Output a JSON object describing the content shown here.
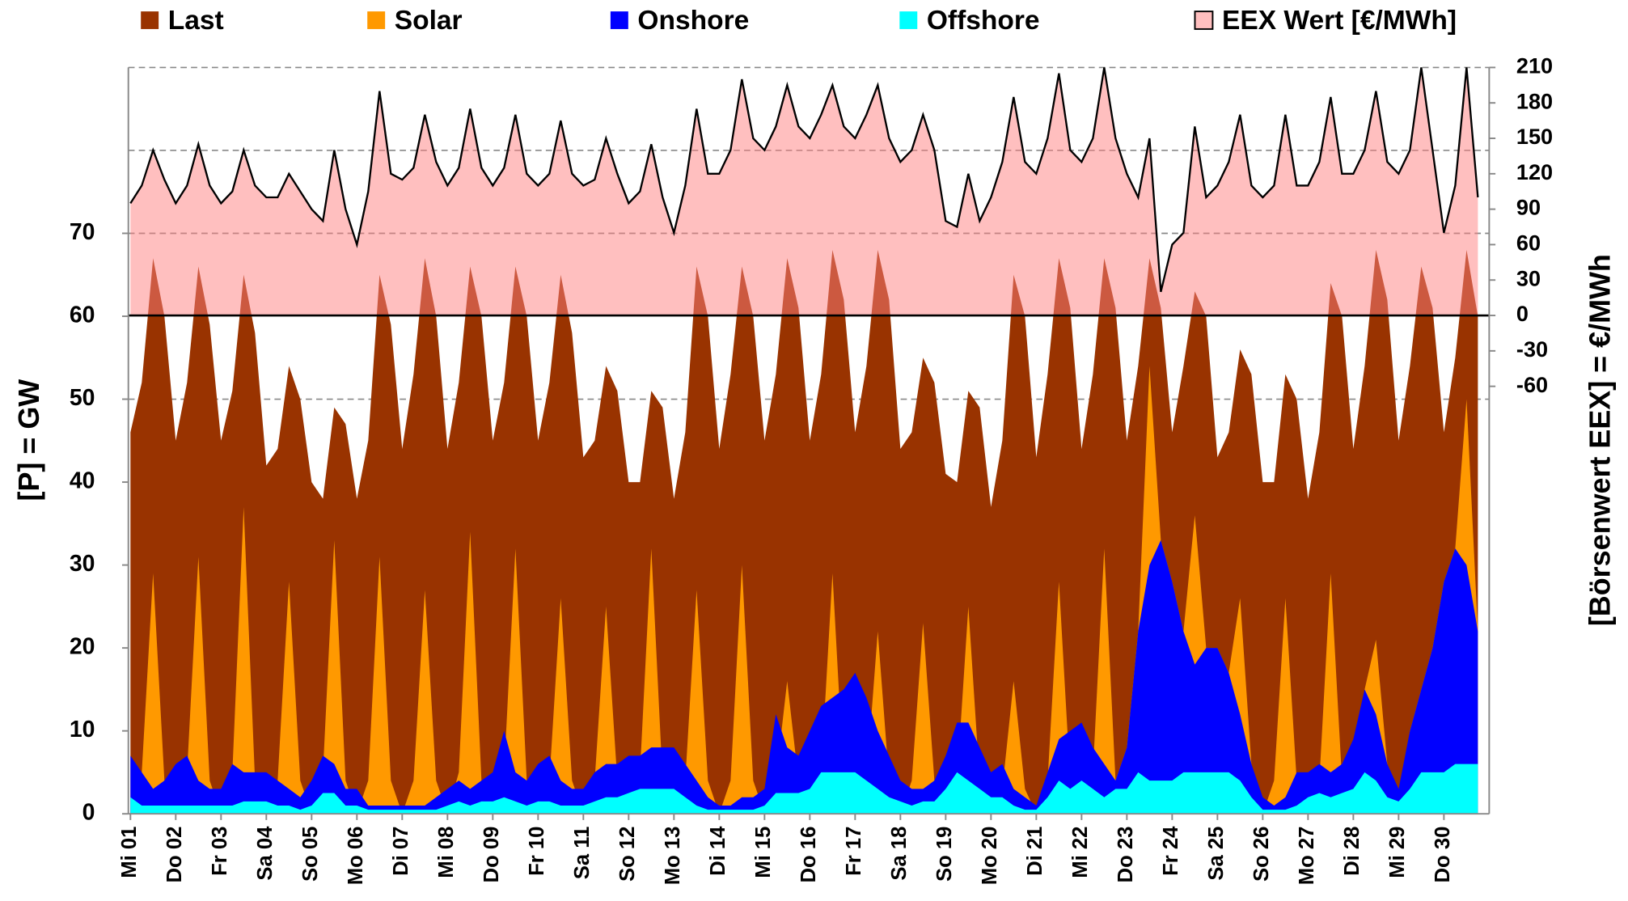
{
  "chart_data": {
    "type": "area",
    "x": [
      0,
      0.25,
      0.5,
      0.75,
      1,
      1.25,
      1.5,
      1.75,
      2,
      2.25,
      2.5,
      2.75,
      3,
      3.25,
      3.5,
      3.75,
      4,
      4.25,
      4.5,
      4.75,
      5,
      5.25,
      5.5,
      5.75,
      6,
      6.25,
      6.5,
      6.75,
      7,
      7.25,
      7.5,
      7.75,
      8,
      8.25,
      8.5,
      8.75,
      9,
      9.25,
      9.5,
      9.75,
      10,
      10.25,
      10.5,
      10.75,
      11,
      11.25,
      11.5,
      11.75,
      12,
      12.25,
      12.5,
      12.75,
      13,
      13.25,
      13.5,
      13.75,
      14,
      14.25,
      14.5,
      14.75,
      15,
      15.25,
      15.5,
      15.75,
      16,
      16.25,
      16.5,
      16.75,
      17,
      17.25,
      17.5,
      17.75,
      18,
      18.25,
      18.5,
      18.75,
      19,
      19.25,
      19.5,
      19.75,
      20,
      20.25,
      20.5,
      20.75,
      21,
      21.25,
      21.5,
      21.75,
      22,
      22.25,
      22.5,
      22.75,
      23,
      23.25,
      23.5,
      23.75,
      24,
      24.25,
      24.5,
      24.75,
      25,
      25.25,
      25.5,
      25.75,
      26,
      26.25,
      26.5,
      26.75,
      27,
      27.25,
      27.5,
      27.75,
      28,
      28.25,
      28.5,
      28.75,
      29,
      29.25,
      29.5,
      29.75
    ],
    "xlim": [
      0,
      30
    ],
    "xticks": [
      {
        "value": 0,
        "label": "Mi 01"
      },
      {
        "value": 1,
        "label": "Do 02"
      },
      {
        "value": 2,
        "label": "Fr 03"
      },
      {
        "value": 3,
        "label": "Sa 04"
      },
      {
        "value": 4,
        "label": "So 05"
      },
      {
        "value": 5,
        "label": "Mo 06"
      },
      {
        "value": 6,
        "label": "Di 07"
      },
      {
        "value": 7,
        "label": "Mi 08"
      },
      {
        "value": 8,
        "label": "Do 09"
      },
      {
        "value": 9,
        "label": "Fr 10"
      },
      {
        "value": 10,
        "label": "Sa 11"
      },
      {
        "value": 11,
        "label": "So 12"
      },
      {
        "value": 12,
        "label": "Mo 13"
      },
      {
        "value": 13,
        "label": "Di 14"
      },
      {
        "value": 14,
        "label": "Mi 15"
      },
      {
        "value": 15,
        "label": "Do 16"
      },
      {
        "value": 16,
        "label": "Fr 17"
      },
      {
        "value": 17,
        "label": "Sa 18"
      },
      {
        "value": 18,
        "label": "So 19"
      },
      {
        "value": 19,
        "label": "Mo 20"
      },
      {
        "value": 20,
        "label": "Di 21"
      },
      {
        "value": 21,
        "label": "Mi 22"
      },
      {
        "value": 22,
        "label": "Do 23"
      },
      {
        "value": 23,
        "label": "Fr 24"
      },
      {
        "value": 24,
        "label": "Sa 25"
      },
      {
        "value": 25,
        "label": "So 26"
      },
      {
        "value": 26,
        "label": "Mo 27"
      },
      {
        "value": 27,
        "label": "Di 28"
      },
      {
        "value": 28,
        "label": "Mi 29"
      },
      {
        "value": 29,
        "label": "Do 30"
      }
    ],
    "ylabel": "[P]  =  GW",
    "y2label": "[Börsenwert  EEX]  =  €/MWh",
    "ylim": [
      0,
      90
    ],
    "yticks": [
      0,
      10,
      20,
      30,
      40,
      50,
      60,
      70
    ],
    "y2lim": [
      -422,
      210
    ],
    "y2ticks": [
      -60,
      -30,
      0,
      30,
      60,
      90,
      120,
      150,
      180,
      210
    ],
    "y2_negative_tick_color": "#ff0000",
    "grid_lines": [
      50,
      70,
      80,
      90
    ],
    "y2_zero_line": true,
    "series": [
      {
        "name": "Last",
        "color": "#993300",
        "values": [
          46,
          52,
          67,
          60,
          45,
          52,
          66,
          59,
          45,
          51,
          65,
          58,
          42,
          44,
          54,
          50,
          40,
          38,
          49,
          47,
          38,
          45,
          65,
          59,
          44,
          53,
          67,
          60,
          44,
          52,
          66,
          60,
          45,
          52,
          66,
          60,
          45,
          52,
          65,
          58,
          43,
          45,
          54,
          51,
          40,
          40,
          51,
          49,
          38,
          46,
          66,
          60,
          44,
          53,
          66,
          60,
          45,
          53,
          67,
          61,
          45,
          53,
          68,
          62,
          46,
          54,
          68,
          62,
          44,
          46,
          55,
          52,
          41,
          40,
          51,
          49,
          37,
          45,
          65,
          60,
          43,
          53,
          67,
          61,
          44,
          53,
          67,
          61,
          45,
          54,
          67,
          61,
          46,
          54,
          63,
          60,
          43,
          46,
          56,
          53,
          40,
          40,
          53,
          50,
          38,
          46,
          64,
          60,
          44,
          54,
          68,
          62,
          45,
          54,
          66,
          61,
          46,
          55,
          68,
          60
        ]
      },
      {
        "name": "Solar",
        "color": "#ff9900",
        "values": [
          0,
          5,
          29,
          4,
          0,
          5,
          31,
          4,
          0,
          5,
          37,
          4,
          0,
          4,
          28,
          4,
          0,
          5,
          33,
          4,
          0,
          4,
          31,
          4,
          0,
          4,
          27,
          4,
          0,
          5,
          34,
          4,
          0,
          5,
          32,
          4,
          0,
          4,
          26,
          4,
          0,
          4,
          25,
          4,
          0,
          5,
          32,
          4,
          0,
          4,
          27,
          4,
          0,
          4,
          30,
          4,
          0,
          4,
          16,
          4,
          0,
          5,
          29,
          4,
          0,
          4,
          22,
          4,
          0,
          4,
          23,
          4,
          0,
          4,
          25,
          4,
          0,
          3,
          16,
          3,
          0,
          4,
          28,
          4,
          0,
          5,
          32,
          4,
          8,
          22,
          54,
          33,
          28,
          22,
          36,
          20,
          20,
          17,
          26,
          6,
          0,
          4,
          26,
          4,
          0,
          4,
          29,
          4,
          0,
          15,
          21,
          6,
          0,
          10,
          15,
          20,
          28,
          32,
          50,
          22
        ]
      },
      {
        "name": "Onshore",
        "color": "#0000ff",
        "values": [
          7,
          5,
          3,
          4,
          6,
          7,
          4,
          3,
          3,
          6,
          5,
          5,
          5,
          4,
          3,
          2,
          4,
          7,
          6,
          3,
          3,
          1,
          1,
          1,
          1,
          1,
          1,
          2,
          3,
          4,
          3,
          4,
          5,
          10,
          5,
          4,
          6,
          7,
          4,
          3,
          3,
          5,
          6,
          6,
          7,
          7,
          8,
          8,
          8,
          6,
          4,
          2,
          1,
          1,
          2,
          2,
          3,
          12,
          8,
          7,
          10,
          13,
          14,
          15,
          17,
          14,
          10,
          7,
          4,
          3,
          3,
          4,
          7,
          11,
          11,
          8,
          5,
          6,
          3,
          2,
          1,
          5,
          9,
          10,
          11,
          8,
          6,
          4,
          8,
          22,
          30,
          33,
          28,
          22,
          18,
          20,
          20,
          17,
          12,
          6,
          2,
          1,
          2,
          5,
          5,
          6,
          5,
          6,
          9,
          15,
          12,
          6,
          3,
          10,
          15,
          20,
          28,
          32,
          30,
          22
        ]
      },
      {
        "name": "Offshore",
        "color": "#00ffff",
        "values": [
          2,
          1,
          1,
          1,
          1,
          1,
          1,
          1,
          1,
          1,
          1.5,
          1.5,
          1.5,
          1,
          1,
          0.5,
          1,
          2.5,
          2.5,
          1,
          1,
          0.5,
          0.5,
          0.5,
          0.5,
          0.5,
          0.5,
          0.5,
          1,
          1.5,
          1,
          1.5,
          1.5,
          2,
          1.5,
          1,
          1.5,
          1.5,
          1,
          1,
          1,
          1.5,
          2,
          2,
          2.5,
          3,
          3,
          3,
          3,
          2,
          1,
          0.5,
          0.5,
          0.5,
          0.5,
          0.5,
          1,
          2.5,
          2.5,
          2.5,
          3,
          5,
          5,
          5,
          5,
          4,
          3,
          2,
          1.5,
          1,
          1.5,
          1.5,
          3,
          5,
          4,
          3,
          2,
          2,
          1,
          0.5,
          0.5,
          2,
          4,
          3,
          4,
          3,
          2,
          3,
          3,
          5,
          4,
          4,
          4,
          5,
          5,
          5,
          5,
          5,
          4,
          2,
          0.5,
          0.5,
          0.5,
          1,
          2,
          2.5,
          2,
          2.5,
          3,
          5,
          4,
          2,
          1.5,
          3,
          5,
          5,
          5,
          6,
          6,
          6
        ]
      },
      {
        "name": "EEX Wert [€/MWh]",
        "type": "line",
        "axis": "y2",
        "color": "#000000",
        "fill": "#ff8080",
        "values": [
          95,
          110,
          140,
          115,
          95,
          110,
          145,
          110,
          95,
          105,
          140,
          110,
          100,
          100,
          120,
          105,
          90,
          80,
          140,
          90,
          60,
          105,
          190,
          120,
          115,
          125,
          170,
          130,
          110,
          125,
          175,
          125,
          110,
          125,
          170,
          120,
          110,
          120,
          165,
          120,
          110,
          115,
          150,
          120,
          95,
          105,
          145,
          100,
          70,
          110,
          175,
          120,
          120,
          140,
          200,
          150,
          140,
          160,
          195,
          160,
          150,
          170,
          195,
          160,
          150,
          170,
          195,
          150,
          130,
          140,
          170,
          140,
          80,
          75,
          120,
          80,
          100,
          130,
          185,
          130,
          120,
          150,
          205,
          140,
          130,
          150,
          210,
          150,
          120,
          100,
          150,
          20,
          60,
          70,
          160,
          100,
          110,
          130,
          170,
          110,
          100,
          110,
          170,
          110,
          110,
          130,
          185,
          120,
          120,
          140,
          190,
          130,
          120,
          140,
          210,
          140,
          70,
          110,
          210,
          100
        ]
      }
    ]
  }
}
